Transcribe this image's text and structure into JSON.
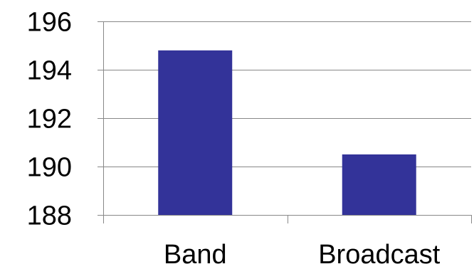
{
  "chart_data": {
    "type": "bar",
    "categories": [
      "Band",
      "Broadcast"
    ],
    "values": [
      194.8,
      190.5
    ],
    "ylim": [
      188,
      196
    ],
    "yticks": [
      188,
      190,
      192,
      194,
      196
    ],
    "grid": true,
    "title": "",
    "xlabel": "",
    "ylabel": "",
    "bar_color": "#333399",
    "grid_color": "#888888"
  }
}
